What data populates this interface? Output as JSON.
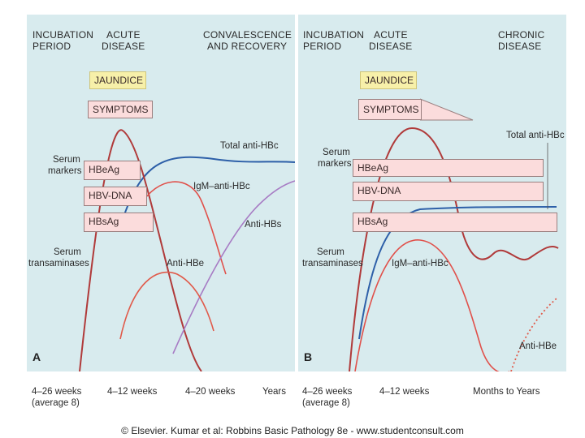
{
  "panel_a": {
    "letter": "A",
    "headers": {
      "incubation_1": "INCUBATION",
      "incubation_2": "PERIOD",
      "acute_1": "ACUTE",
      "acute_2": "DISEASE",
      "conv_1": "CONVALESCENCE",
      "conv_2": "AND RECOVERY"
    },
    "boxes": {
      "jaundice": "JAUNDICE",
      "symptoms": "SYMPTOMS",
      "hbeag": "HBeAg",
      "hbv_dna": "HBV-DNA",
      "hbsag": "HBsAg"
    },
    "labels": {
      "serum_markers_1": "Serum",
      "serum_markers_2": "markers",
      "serum_trans_1": "Serum",
      "serum_trans_2": "transaminases",
      "total_anti_hbc": "Total anti-HBc",
      "igm_anti_hbc": "IgM–anti-HBc",
      "anti_hbs": "Anti-HBs",
      "anti_hbe": "Anti-HBe"
    },
    "axis": {
      "t1_1": "4–26 weeks",
      "t1_2": "(average 8)",
      "t2": "4–12 weeks",
      "t3": "4–20 weeks",
      "t4": "Years"
    }
  },
  "panel_b": {
    "letter": "B",
    "headers": {
      "incubation_1": "INCUBATION",
      "incubation_2": "PERIOD",
      "acute_1": "ACUTE",
      "acute_2": "DISEASE",
      "chronic_1": "CHRONIC",
      "chronic_2": "DISEASE"
    },
    "boxes": {
      "jaundice": "JAUNDICE",
      "symptoms": "SYMPTOMS",
      "hbeag": "HBeAg",
      "hbv_dna": "HBV-DNA",
      "hbsag": "HBsAg"
    },
    "labels": {
      "serum_markers_1": "Serum",
      "serum_markers_2": "markers",
      "serum_trans_1": "Serum",
      "serum_trans_2": "transaminases",
      "total_anti_hbc": "Total anti-HBc",
      "igm_anti_hbc": "IgM–anti-HBc",
      "anti_hbe": "Anti-HBe"
    },
    "axis": {
      "t1_1": "4–26 weeks",
      "t1_2": "(average 8)",
      "t2": "4–12 weeks",
      "t3": "Months to Years"
    }
  },
  "caption": "© Elsevier. Kumar et al: Robbins Basic Pathology 8e - www.studentconsult.com",
  "colors": {
    "panel_bg": "#d8ebee",
    "transaminase": "#b03a3a",
    "igm": "#e0504a",
    "total_hbc": "#2d5fa8",
    "anti_hbs": "#a77cc4",
    "anti_hbe": "#e05a4a"
  }
}
